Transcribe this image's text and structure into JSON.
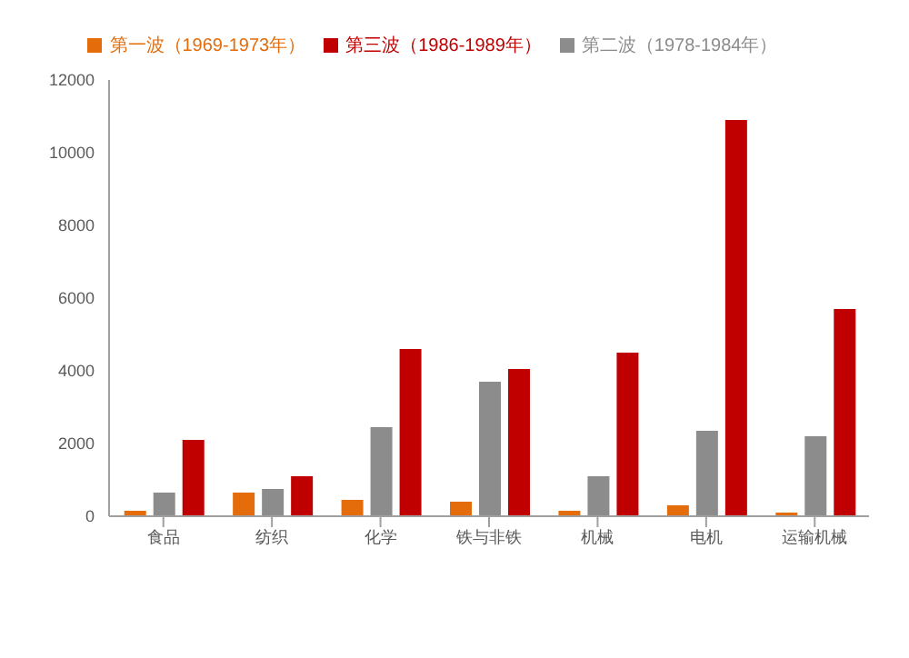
{
  "chart_data": {
    "type": "bar",
    "categories": [
      "食品",
      "纺织",
      "化学",
      "铁与非铁",
      "机械",
      "电机",
      "运输机械"
    ],
    "series": [
      {
        "name": "第一波（1969-1973年）",
        "color": "#e46c0a",
        "values": [
          150,
          650,
          450,
          400,
          150,
          300,
          100
        ]
      },
      {
        "name": "第二波（1978-1984年）",
        "color": "#8c8c8c",
        "values": [
          650,
          750,
          2450,
          3700,
          1100,
          2350,
          2200
        ]
      },
      {
        "name": "第三波（1986-1989年）",
        "color": "#c00000",
        "values": [
          2100,
          1100,
          4600,
          4050,
          4500,
          10900,
          5700
        ]
      }
    ],
    "ylim": [
      0,
      12000
    ],
    "yticks": [
      0,
      2000,
      4000,
      6000,
      8000,
      10000,
      12000
    ],
    "grid": false,
    "legend": "top"
  }
}
